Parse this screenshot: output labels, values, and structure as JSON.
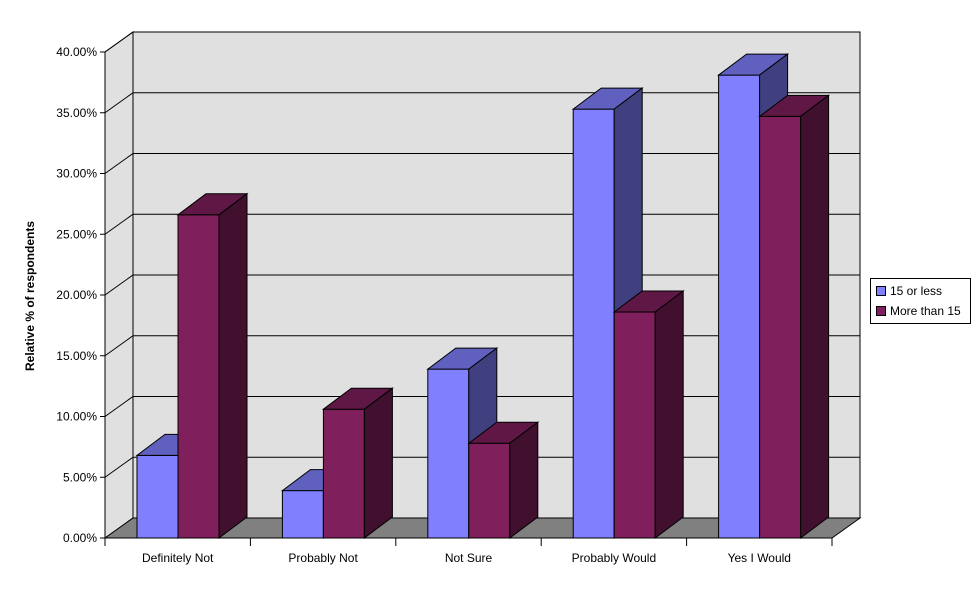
{
  "chart_data": {
    "type": "bar",
    "ylabel": "Relative % of respondents",
    "xlabel": "",
    "categories": [
      "Definitely Not",
      "Probably Not",
      "Not Sure",
      "Probably Would",
      "Yes I Would"
    ],
    "series": [
      {
        "name": "15 or less",
        "values": [
          6.8,
          3.9,
          13.9,
          35.3,
          38.1
        ],
        "color": "#8080ff"
      },
      {
        "name": "More than 15",
        "values": [
          26.6,
          10.6,
          7.8,
          18.6,
          34.7
        ],
        "color": "#7f1f5c"
      }
    ],
    "ylim": [
      0,
      40
    ],
    "ytick_labels": [
      "0.00%",
      "5.00%",
      "10.00%",
      "15.00%",
      "20.00%",
      "25.00%",
      "30.00%",
      "35.00%",
      "40.00%"
    ],
    "grid": true,
    "legend_position": "right",
    "style": "3d-clustered-column"
  }
}
